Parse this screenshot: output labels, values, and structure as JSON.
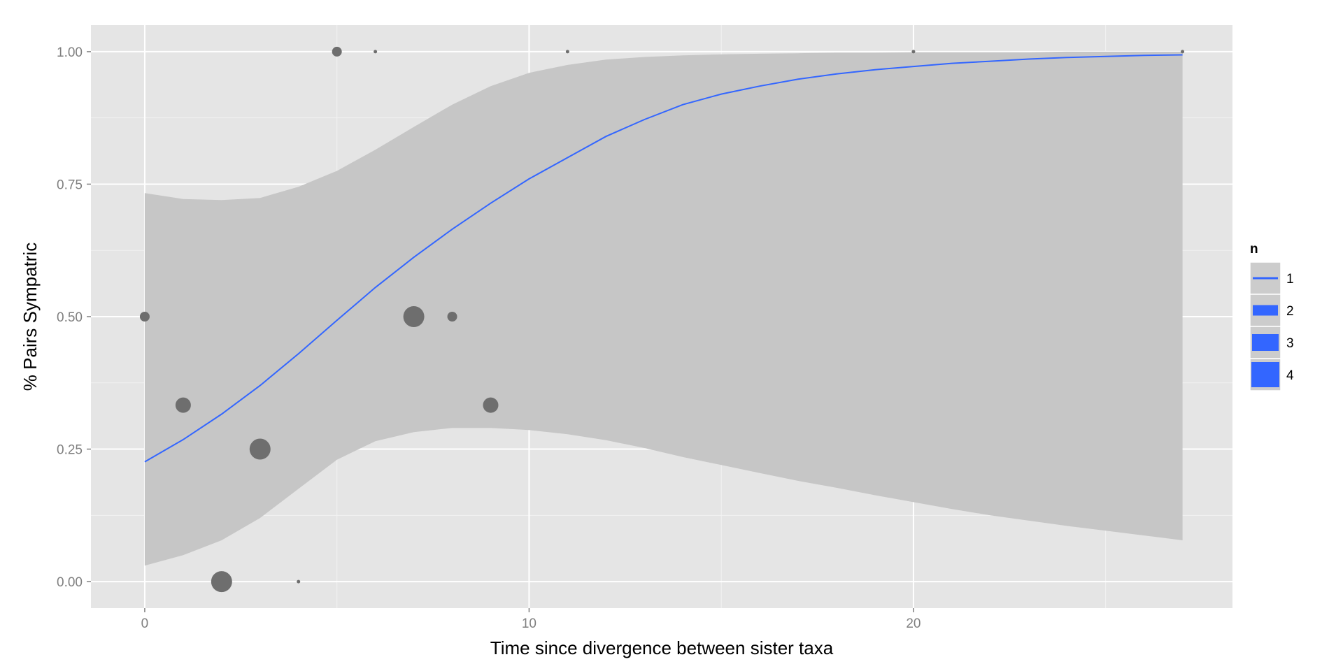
{
  "chart_data": {
    "type": "scatter",
    "xlabel": "Time since divergence between sister taxa",
    "ylabel": "% Pairs Sympatric",
    "xlim": [
      -1.4,
      28.3
    ],
    "ylim": [
      -0.05,
      1.05
    ],
    "x_ticks": [
      0,
      10,
      20
    ],
    "x_tick_labels": [
      "0",
      "10",
      "20"
    ],
    "x_minor_ticks": [
      5,
      15,
      25
    ],
    "y_ticks": [
      0,
      0.25,
      0.5,
      0.75,
      1
    ],
    "y_tick_labels": [
      "0.00",
      "0.25",
      "0.50",
      "0.75",
      "1.00"
    ],
    "y_minor_ticks": [
      0.125,
      0.375,
      0.625,
      0.875
    ],
    "grid": true,
    "points": [
      {
        "x": 0,
        "y": 0.5,
        "n": 2
      },
      {
        "x": 1,
        "y": 0.333,
        "n": 3
      },
      {
        "x": 2,
        "y": 0.0,
        "n": 4
      },
      {
        "x": 3,
        "y": 0.25,
        "n": 4
      },
      {
        "x": 4,
        "y": 0.0,
        "n": 1
      },
      {
        "x": 5,
        "y": 1.0,
        "n": 2
      },
      {
        "x": 6,
        "y": 1.0,
        "n": 1
      },
      {
        "x": 7,
        "y": 0.5,
        "n": 4
      },
      {
        "x": 8,
        "y": 0.5,
        "n": 2
      },
      {
        "x": 9,
        "y": 0.333,
        "n": 3
      },
      {
        "x": 11,
        "y": 1.0,
        "n": 1
      },
      {
        "x": 20,
        "y": 1.0,
        "n": 1
      },
      {
        "x": 27,
        "y": 1.0,
        "n": 1
      }
    ],
    "smooth": {
      "method": "logistic",
      "x": [
        0,
        1,
        2,
        3,
        4,
        5,
        6,
        7,
        8,
        9,
        10,
        11,
        12,
        13,
        14,
        15,
        16,
        17,
        18,
        19,
        20,
        21,
        22,
        23,
        24,
        25,
        26,
        27
      ],
      "fit": [
        0.226,
        0.268,
        0.316,
        0.37,
        0.43,
        0.493,
        0.555,
        0.612,
        0.665,
        0.714,
        0.76,
        0.8,
        0.84,
        0.872,
        0.9,
        0.92,
        0.935,
        0.948,
        0.958,
        0.966,
        0.972,
        0.978,
        0.982,
        0.986,
        0.989,
        0.991,
        0.993,
        0.994
      ],
      "upper": [
        0.733,
        0.722,
        0.72,
        0.724,
        0.745,
        0.775,
        0.815,
        0.858,
        0.9,
        0.935,
        0.96,
        0.975,
        0.985,
        0.99,
        0.993,
        0.995,
        0.996,
        0.997,
        0.998,
        0.998,
        0.999,
        0.999,
        0.999,
        0.999,
        1.0,
        1.0,
        1.0,
        1.0
      ],
      "lower": [
        0.03,
        0.05,
        0.078,
        0.12,
        0.175,
        0.23,
        0.265,
        0.282,
        0.29,
        0.29,
        0.286,
        0.278,
        0.267,
        0.252,
        0.235,
        0.22,
        0.205,
        0.19,
        0.177,
        0.163,
        0.15,
        0.137,
        0.125,
        0.115,
        0.105,
        0.096,
        0.087,
        0.078
      ]
    },
    "legend": {
      "title": "n",
      "position": "right",
      "entries": [
        "1",
        "2",
        "3",
        "4"
      ]
    },
    "colors": {
      "panel": "#e5e5e5",
      "grid_major": "#ffffff",
      "grid_minor": "#f2f2f2",
      "ribbon": "#c6c6c6",
      "point": "#6e6e6e",
      "line": "#3366ff",
      "legend_key_bg": "#cccccc"
    }
  }
}
